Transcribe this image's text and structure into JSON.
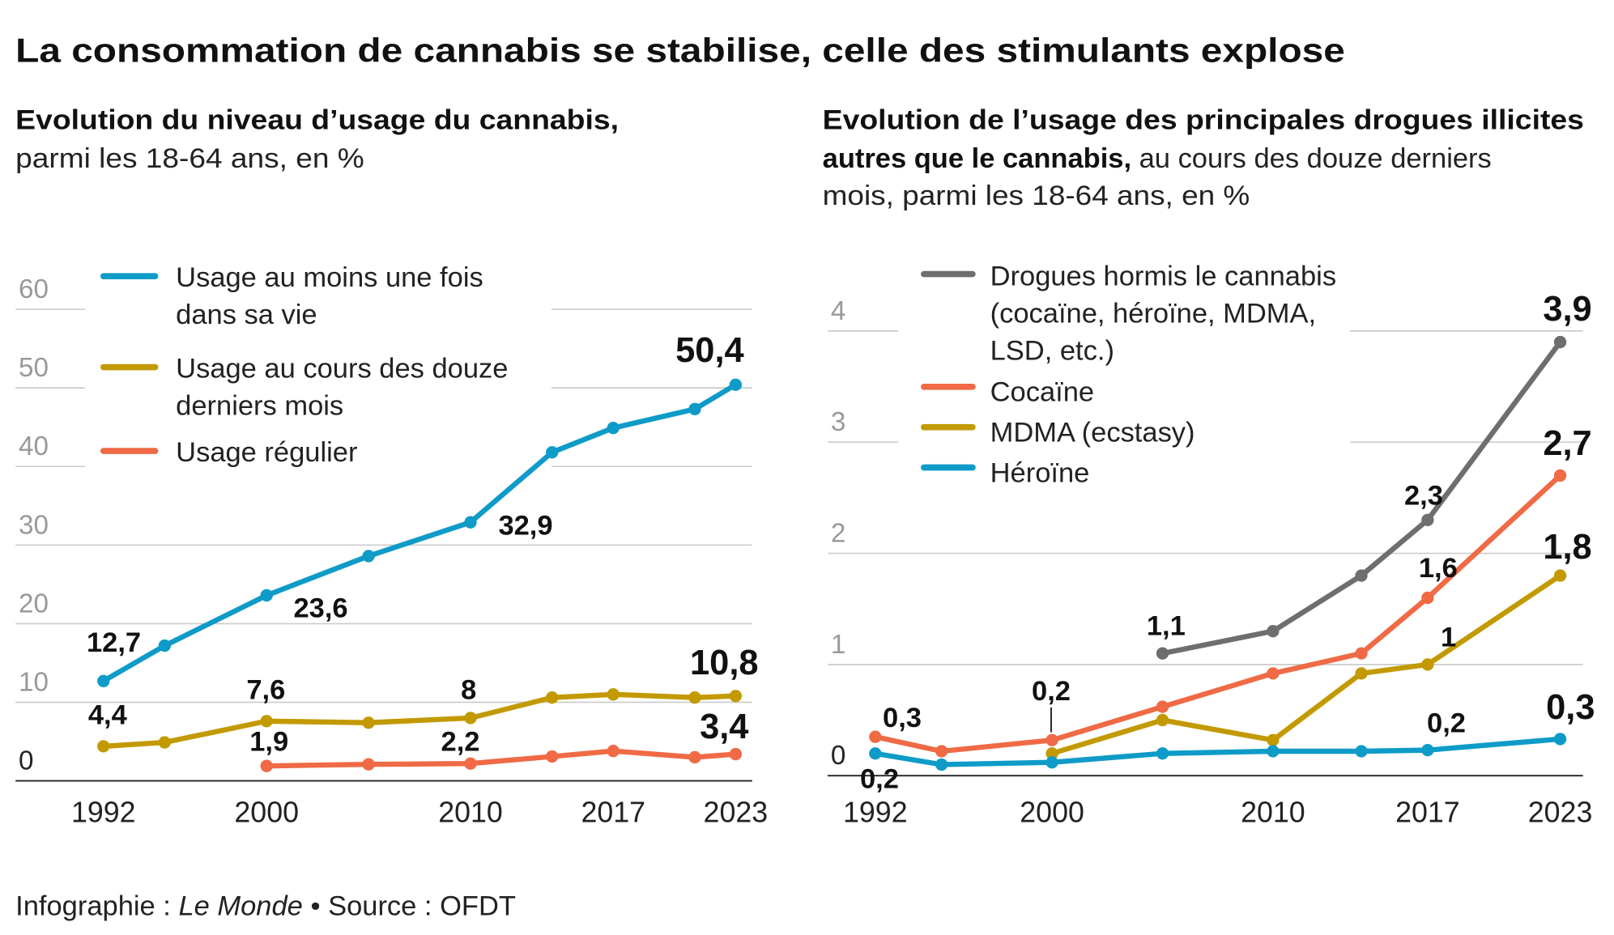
{
  "title": "La consommation de cannabis se stabilise, celle des stimulants explose",
  "footer": {
    "prefix": "Infographie : ",
    "brand": "Le Monde",
    "suffix": " • Source : OFDT"
  },
  "colors": {
    "blue": "#0f9bc8",
    "gold": "#c29a00",
    "red": "#ef6a45",
    "gray": "#6e6e6e"
  },
  "chart_data": [
    {
      "type": "line",
      "subtitle_bold": "Evolution du niveau d’usage du cannabis,",
      "subtitle_regular": "parmi les 18-64 ans, en %",
      "yticks": [
        "0",
        "10",
        "20",
        "30",
        "40",
        "50",
        "60"
      ],
      "ylim": [
        0,
        60
      ],
      "xtick_labels": [
        "1992",
        "2000",
        "2010",
        "2017",
        "2023"
      ],
      "xticks": [
        1992,
        2000,
        2010,
        2017,
        2023
      ],
      "grid": true,
      "legend_placement": "top-left",
      "series": [
        {
          "name": "Usage au moins une fois dans sa vie",
          "name_lines": [
            "Usage au moins une fois",
            "dans sa vie"
          ],
          "color": "#0f9bc8",
          "x": [
            1992,
            1995,
            2000,
            2005,
            2010,
            2014,
            2017,
            2021,
            2023
          ],
          "values": [
            12.7,
            17.2,
            23.6,
            28.6,
            32.9,
            41.8,
            44.9,
            47.3,
            50.4
          ]
        },
        {
          "name": "Usage au cours des douze derniers mois",
          "name_lines": [
            "Usage au cours des douze",
            "derniers mois"
          ],
          "color": "#c29a00",
          "x": [
            1992,
            1995,
            2000,
            2005,
            2010,
            2014,
            2017,
            2021,
            2023
          ],
          "values": [
            4.4,
            4.9,
            7.6,
            7.4,
            8.0,
            10.6,
            11.0,
            10.6,
            10.8
          ]
        },
        {
          "name": "Usage régulier",
          "name_lines": [
            "Usage régulier"
          ],
          "color": "#ef6a45",
          "x": [
            2000,
            2005,
            2010,
            2014,
            2017,
            2021,
            2023
          ],
          "values": [
            1.9,
            2.1,
            2.2,
            3.1,
            3.8,
            3.0,
            3.4
          ]
        }
      ],
      "annotations": [
        {
          "series": 0,
          "x": 1992,
          "text": "12,7"
        },
        {
          "series": 0,
          "x": 2000,
          "text": "23,6"
        },
        {
          "series": 0,
          "x": 2010,
          "text": "32,9"
        },
        {
          "series": 0,
          "x": 2023,
          "text": "50,4"
        },
        {
          "series": 1,
          "x": 1992,
          "text": "4,4"
        },
        {
          "series": 1,
          "x": 2000,
          "text": "7,6"
        },
        {
          "series": 1,
          "x": 2010,
          "text": "8"
        },
        {
          "series": 1,
          "x": 2023,
          "text": "10,8"
        },
        {
          "series": 2,
          "x": 2000,
          "text": "1,9"
        },
        {
          "series": 2,
          "x": 2010,
          "text": "2,2"
        },
        {
          "series": 2,
          "x": 2023,
          "text": "3,4"
        }
      ]
    },
    {
      "type": "line",
      "subtitle_bold": "Evolution de l’usage des principales drogues illicites",
      "subtitle_bold2": "autres que le cannabis,",
      "subtitle_regular2": " au cours des douze derniers",
      "subtitle_regular3": "mois, parmi les 18-64 ans, en %",
      "yticks": [
        "0",
        "1",
        "2",
        "3",
        "4"
      ],
      "ylim": [
        0,
        4
      ],
      "xtick_labels": [
        "1992",
        "2000",
        "2010",
        "2017",
        "2023"
      ],
      "xticks": [
        1992,
        2000,
        2010,
        2017,
        2023
      ],
      "grid": true,
      "legend_placement": "top-left",
      "series": [
        {
          "name": "Drogues hormis le cannabis (cocaïne, héroïne, MDMA, LSD, etc.)",
          "name_lines": [
            "Drogues hormis le cannabis",
            "(cocaïne, héroïne, MDMA,",
            "LSD, etc.)"
          ],
          "color": "#6e6e6e",
          "x": [
            2005,
            2010,
            2014,
            2017,
            2023
          ],
          "values": [
            1.1,
            1.3,
            1.8,
            2.3,
            3.9
          ]
        },
        {
          "name": "Cocaïne",
          "name_lines": [
            "Cocaïne"
          ],
          "color": "#ef6a45",
          "x": [
            1992,
            1995,
            2000,
            2005,
            2010,
            2014,
            2017,
            2023
          ],
          "values": [
            0.35,
            0.22,
            0.32,
            0.62,
            0.92,
            1.1,
            1.6,
            2.7
          ]
        },
        {
          "name": "MDMA (ecstasy)",
          "name_lines": [
            "MDMA (ecstasy)"
          ],
          "color": "#c29a00",
          "x": [
            2000,
            2005,
            2010,
            2014,
            2017,
            2023
          ],
          "values": [
            0.2,
            0.5,
            0.32,
            0.92,
            1.0,
            1.8
          ]
        },
        {
          "name": "Héroïne",
          "name_lines": [
            "Héroïne"
          ],
          "color": "#0f9bc8",
          "x": [
            1992,
            1995,
            2000,
            2005,
            2010,
            2014,
            2017,
            2023
          ],
          "values": [
            0.2,
            0.1,
            0.12,
            0.2,
            0.22,
            0.22,
            0.23,
            0.33
          ]
        }
      ],
      "annotations": [
        {
          "series": 0,
          "x": 2005,
          "text": "1,1"
        },
        {
          "series": 0,
          "x": 2017,
          "text": "2,3"
        },
        {
          "series": 0,
          "x": 2023,
          "text": "3,9"
        },
        {
          "series": 1,
          "x": 2017,
          "text": "1,6"
        },
        {
          "series": 1,
          "x": 2023,
          "text": "2,7"
        },
        {
          "series": 2,
          "x": 2017,
          "text": "1"
        },
        {
          "series": 2,
          "x": 2023,
          "text": "1,8"
        },
        {
          "series": 1,
          "x": 1992,
          "text": "0,3"
        },
        {
          "series": 2,
          "x": 2000,
          "text": "0,2"
        },
        {
          "series": 3,
          "x": 1992,
          "text": "0,2"
        },
        {
          "series": 3,
          "x": 2017,
          "text": "0,2"
        },
        {
          "series": 3,
          "x": 2023,
          "text": "0,3"
        }
      ]
    }
  ]
}
